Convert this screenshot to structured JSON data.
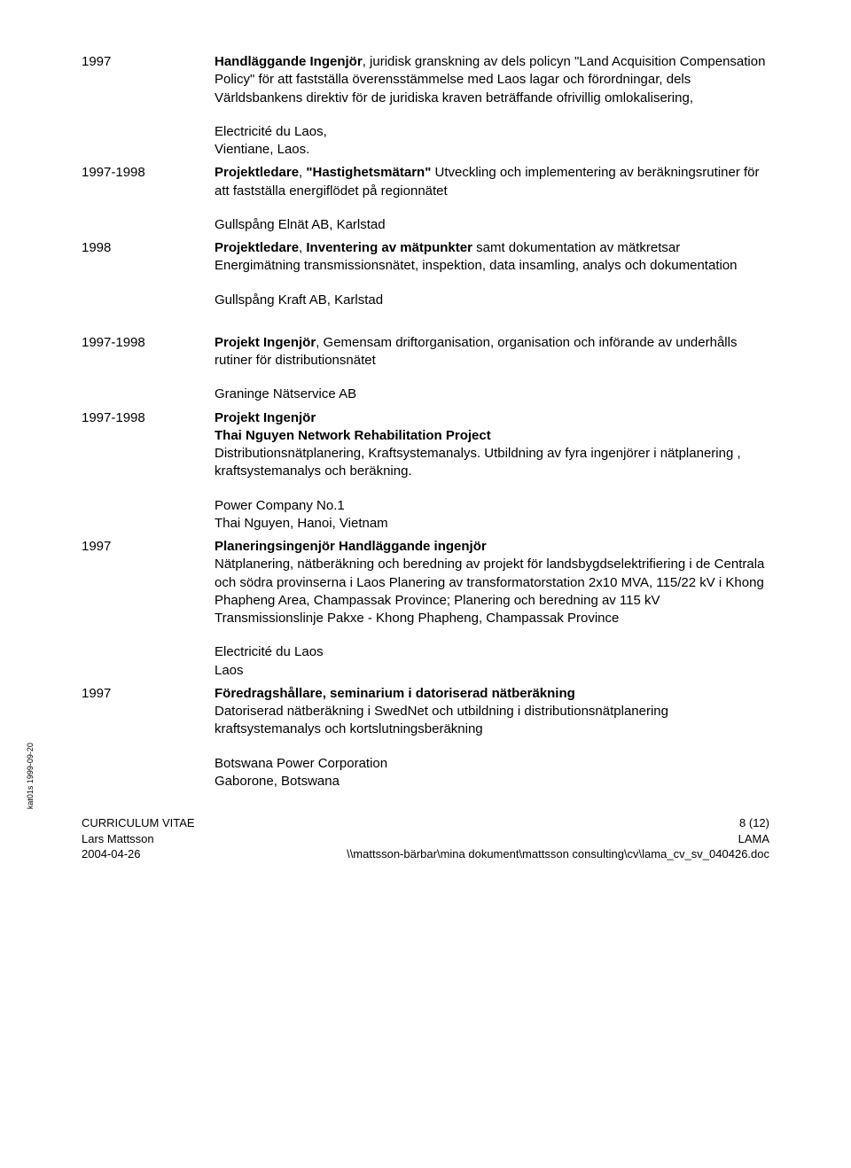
{
  "entries": [
    {
      "year": "1997",
      "paragraphs": [
        {
          "html": "<span class='bold'>Handläggande Ingenjör</span>, juridisk granskning av dels policyn \"Land Acquisition Compensation Policy\" för att fastställa överensstämmelse med Laos lagar och förordningar, dels Världsbankens direktiv för de juridiska kraven beträffande ofrivillig omlokalisering,"
        },
        {
          "html": "Electricité du Laos,<br>Vientiane, Laos."
        }
      ]
    },
    {
      "year": "1997-1998",
      "paragraphs": [
        {
          "html": "<span class='bold'>Projektledare</span>, <span class='bold'>\"Hastighetsmätarn\"</span> Utveckling och implementering av beräkningsrutiner för att fastställa energiflödet på regionnätet"
        },
        {
          "html": "Gullspång Elnät AB, Karlstad"
        }
      ]
    },
    {
      "year": "1998",
      "paragraphs": [
        {
          "html": "<span class='bold'>Projektledare</span>, <span class='bold'>Inventering av mätpunkter</span> samt dokumentation av mätkretsar Energimätning transmissionsnätet, inspektion, data insamling, analys och dokumentation"
        },
        {
          "html": "Gullspång Kraft AB, Karlstad"
        }
      ]
    },
    {
      "year": "1997-1998",
      "paragraphs": [
        {
          "html": "<span class='bold'>Projekt Ingenjör</span>, Gemensam driftorganisation, organisation och införande av underhålls rutiner för distributionsnätet"
        },
        {
          "html": "Graninge Nätservice AB"
        }
      ]
    },
    {
      "year": "1997-1998",
      "paragraphs": [
        {
          "html": "<span class='bold'>Projekt Ingenjör<br>Thai Nguyen Network Rehabilitation Project</span><br>Distributionsnätplanering, Kraftsystemanalys. Utbildning av fyra ingenjörer i nätplanering , kraftsystemanalys och beräkning."
        },
        {
          "html": "Power Company No.1<br>Thai Nguyen, Hanoi, Vietnam"
        }
      ]
    },
    {
      "year": "1997",
      "paragraphs": [
        {
          "html": "<span class='bold'>Planeringsingenjör Handläggande ingenjör</span><br>Nätplanering, nätberäkning och beredning av projekt för landsbygdselektrifiering i  de Centrala och södra provinserna i Laos Planering  av transformatorstation 2x10 MVA, 115/22 kV i Khong Phapheng Area, Champassak Province; Planering och beredning av 115 kV Transmissionslinje Pakxe - Khong Phapheng, Champassak Province"
        },
        {
          "html": "Electricité du Laos<br>Laos"
        }
      ]
    },
    {
      "year": "1997",
      "paragraphs": [
        {
          "html": "<span class='bold'>Föredragshållare, seminarium i datoriserad nätberäkning</span><br>Datoriserad nätberäkning i SwedNet och utbildning i distributionsnätplanering kraftsystemanalys och kortslutningsberäkning"
        },
        {
          "html": "Botswana Power Corporation<br>Gaborone, Botswana"
        }
      ]
    }
  ],
  "side_text": "kat01s 1999-09-20",
  "footer": {
    "left_line1": "CURRICULUM VITAE",
    "left_line2": "Lars Mattsson",
    "left_line3": "2004-04-26",
    "right_line1": "8 (12)",
    "right_line2": "LAMA",
    "right_line3": "\\\\mattsson-bärbar\\mina dokument\\mattsson consulting\\cv\\lama_cv_sv_040426.doc"
  }
}
